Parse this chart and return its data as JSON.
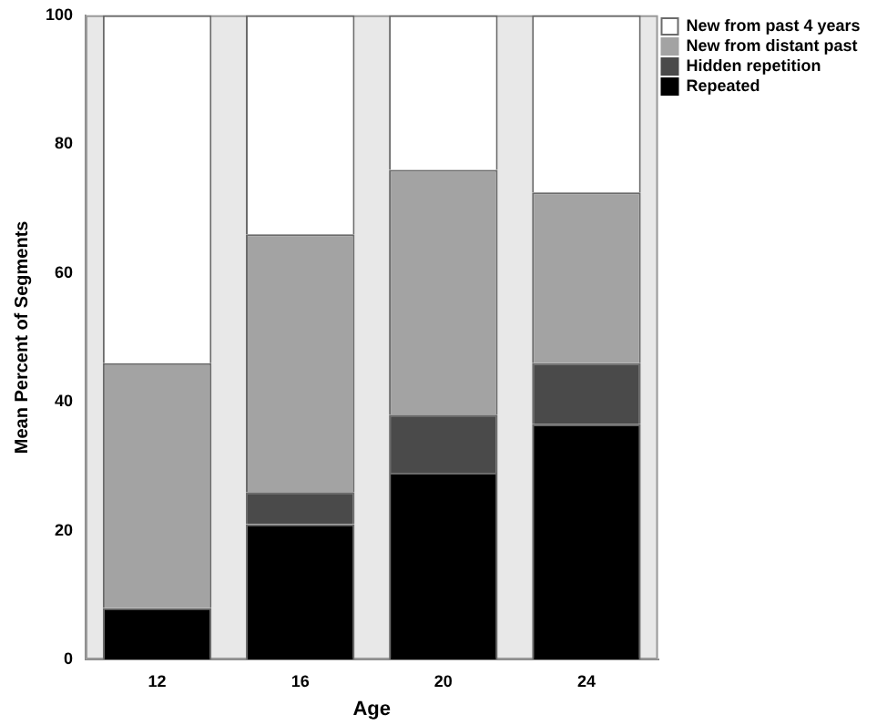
{
  "chart_data": {
    "type": "bar",
    "stacked": true,
    "xlabel": "Age",
    "ylabel": "Mean Percent of Segments",
    "categories": [
      "12",
      "16",
      "20",
      "24"
    ],
    "series": [
      {
        "name": "Repeated",
        "color": "#000000",
        "values": [
          8,
          21,
          29,
          36.5
        ]
      },
      {
        "name": "Hidden repetition",
        "color": "#4a4a4a",
        "values": [
          0,
          5,
          9,
          9.5
        ]
      },
      {
        "name": "New from distant past",
        "color": "#a3a3a3",
        "values": [
          38,
          40,
          38,
          26.5
        ]
      },
      {
        "name": "New from past 4 years",
        "color": "#ffffff",
        "values": [
          54,
          34,
          24,
          27.5
        ]
      }
    ],
    "ylim": [
      0,
      100
    ],
    "yticks": [
      0,
      20,
      40,
      60,
      80,
      100
    ],
    "grid": false,
    "legend": "top right"
  }
}
